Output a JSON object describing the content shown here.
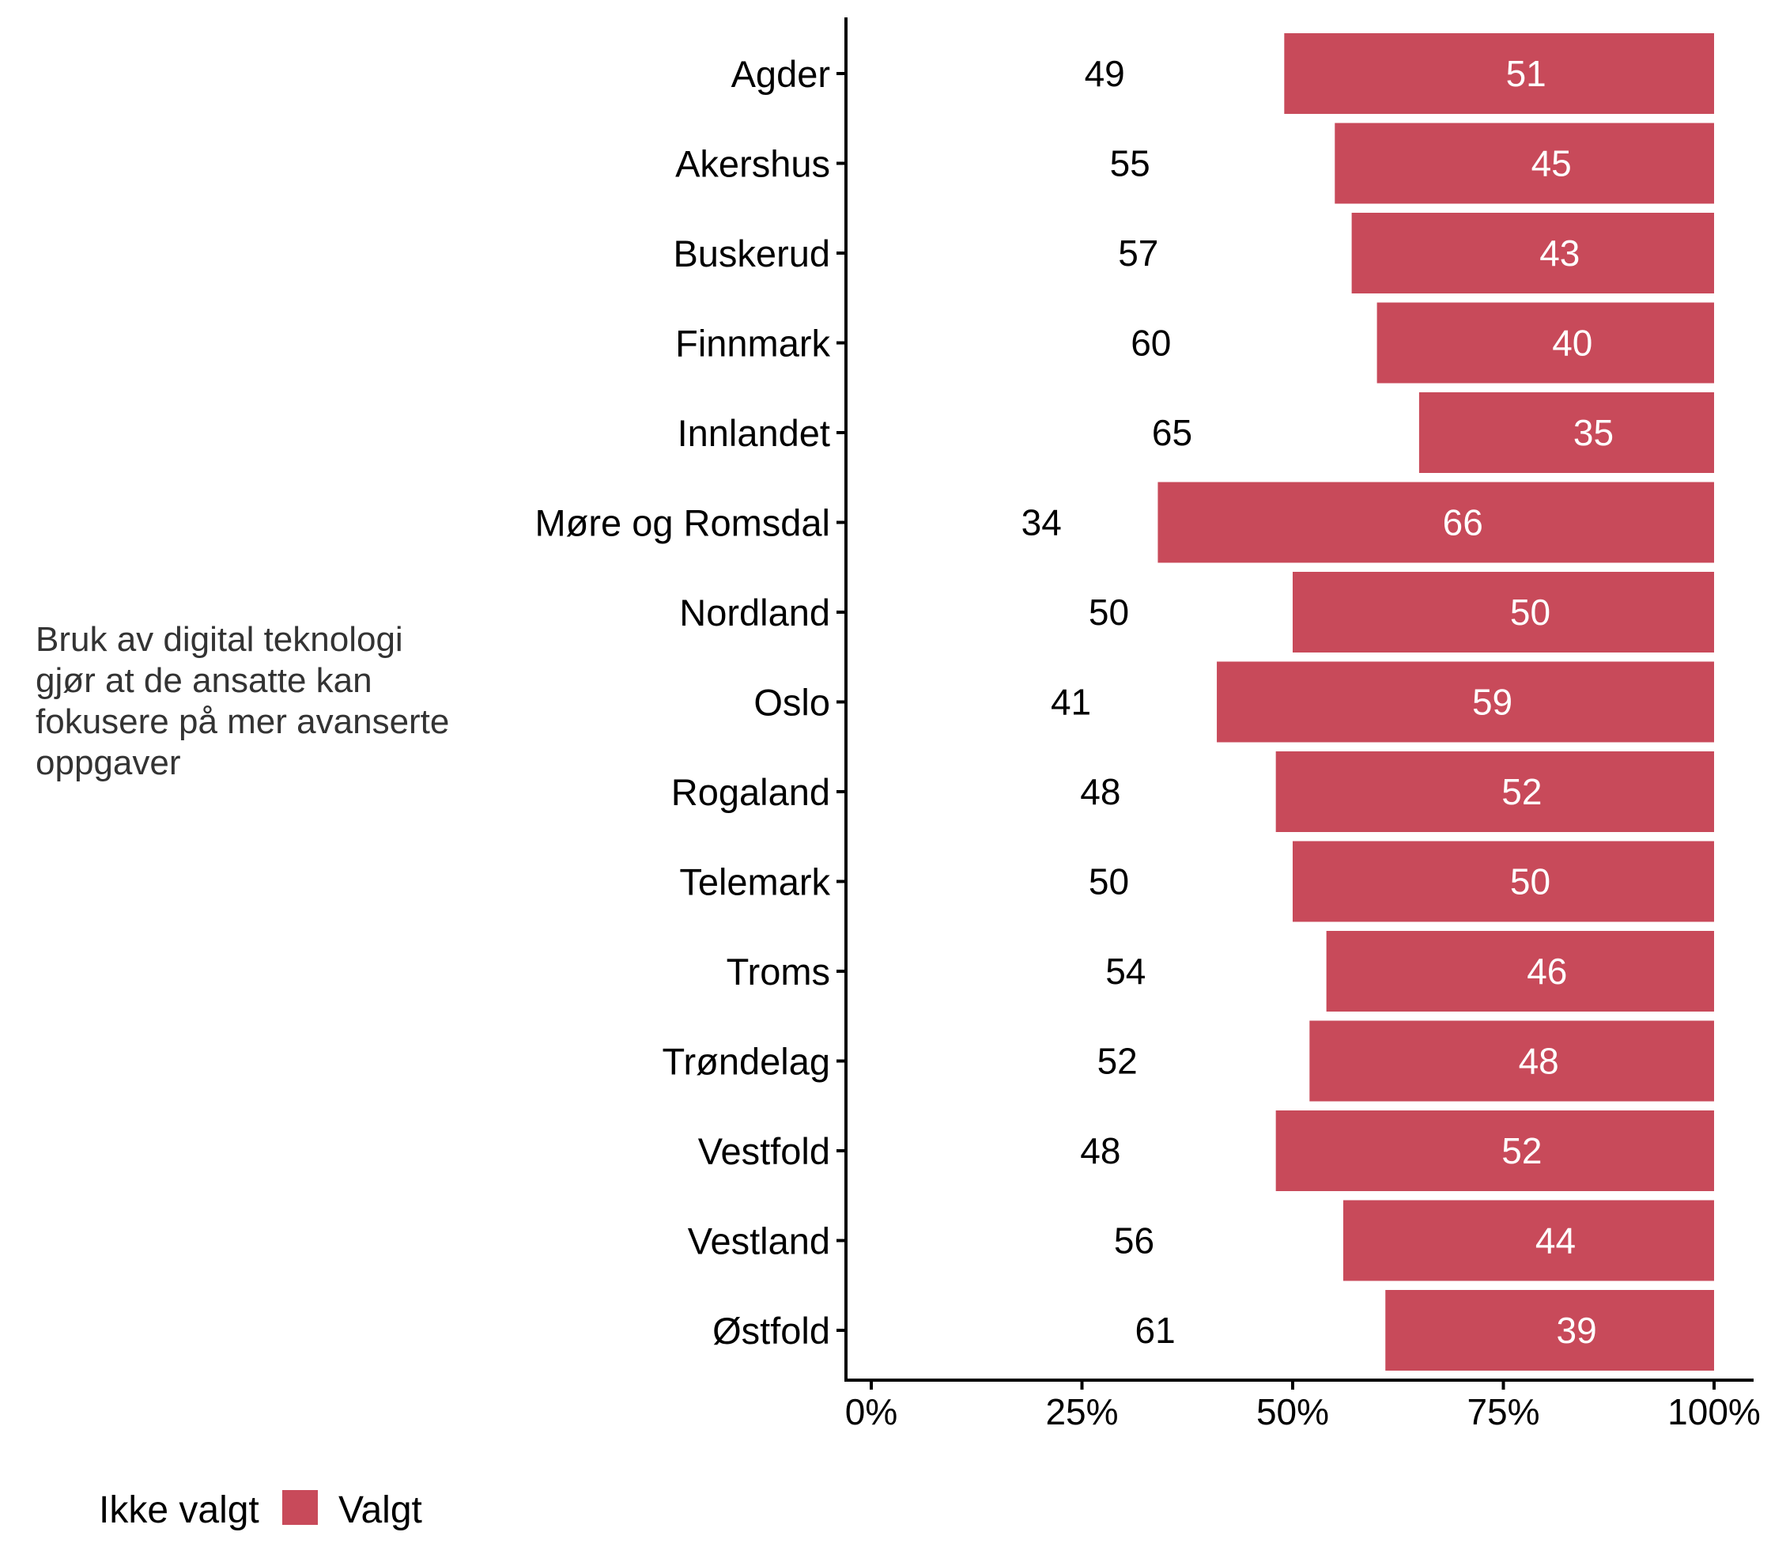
{
  "chart_data": {
    "type": "bar",
    "orientation": "horizontal",
    "stacked": true,
    "percent_scale": true,
    "side_title": [
      "Bruk av digital teknologi",
      "gjør at de ansatte kan",
      "fokusere på mer avanserte",
      "oppgaver"
    ],
    "categories": [
      "Agder",
      "Akershus",
      "Buskerud",
      "Finnmark",
      "Innlandet",
      "Møre og Romsdal",
      "Nordland",
      "Oslo",
      "Rogaland",
      "Telemark",
      "Troms",
      "Trøndelag",
      "Vestfold",
      "Vestland",
      "Østfold"
    ],
    "series": [
      {
        "name": "Ikke valgt",
        "color": "#ffffff",
        "values": [
          49,
          55,
          57,
          60,
          65,
          34,
          50,
          41,
          48,
          50,
          54,
          52,
          48,
          56,
          61
        ]
      },
      {
        "name": "Valgt",
        "color": "#c84a5a",
        "values": [
          51,
          45,
          43,
          40,
          35,
          66,
          50,
          59,
          52,
          50,
          46,
          48,
          52,
          44,
          39
        ]
      }
    ],
    "xlim": [
      0,
      100
    ],
    "x_ticks": [
      {
        "value": 0,
        "label": "0%"
      },
      {
        "value": 25,
        "label": "25%"
      },
      {
        "value": 50,
        "label": "50%"
      },
      {
        "value": 75,
        "label": "75%"
      },
      {
        "value": 100,
        "label": "100%"
      }
    ],
    "xlabel": "",
    "ylabel": "",
    "grid": false,
    "legend": {
      "placement": "bottom-left",
      "entries": [
        {
          "label": "Ikke valgt",
          "color": "#ffffff"
        },
        {
          "label": "Valgt",
          "color": "#c84a5a"
        }
      ]
    },
    "label_colors": {
      "outside": "#000000",
      "inside": "#ffffff"
    }
  }
}
